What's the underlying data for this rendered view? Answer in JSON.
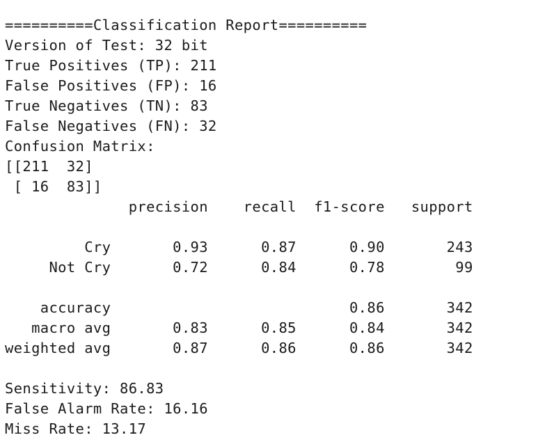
{
  "report": {
    "header_line": "==========Classification Report==========",
    "version_line": "Version of Test: 32 bit",
    "tp_line": "True Positives (TP): 211",
    "fp_line": "False Positives (FP): 16",
    "tn_line": "True Negatives (TN): 83",
    "fn_line": "False Negatives (FN): 32",
    "confusion_matrix_label": "Confusion Matrix:",
    "matrix_row_1": "[[211  32]",
    "matrix_row_2": " [ 16  83]]",
    "table_header": "              precision    recall  f1-score   support",
    "row_cry": "         Cry       0.93      0.87      0.90       243",
    "row_not_cry": "     Not Cry       0.72      0.84      0.78        99",
    "row_accuracy": "    accuracy                           0.86       342",
    "row_macro_avg": "   macro avg       0.83      0.85      0.84       342",
    "row_weighted_avg": "weighted avg       0.87      0.86      0.86       342",
    "sensitivity_line": "Sensitivity: 86.83",
    "false_alarm_line": "False Alarm Rate: 16.16",
    "miss_rate_line": "Miss Rate: 13.17"
  }
}
